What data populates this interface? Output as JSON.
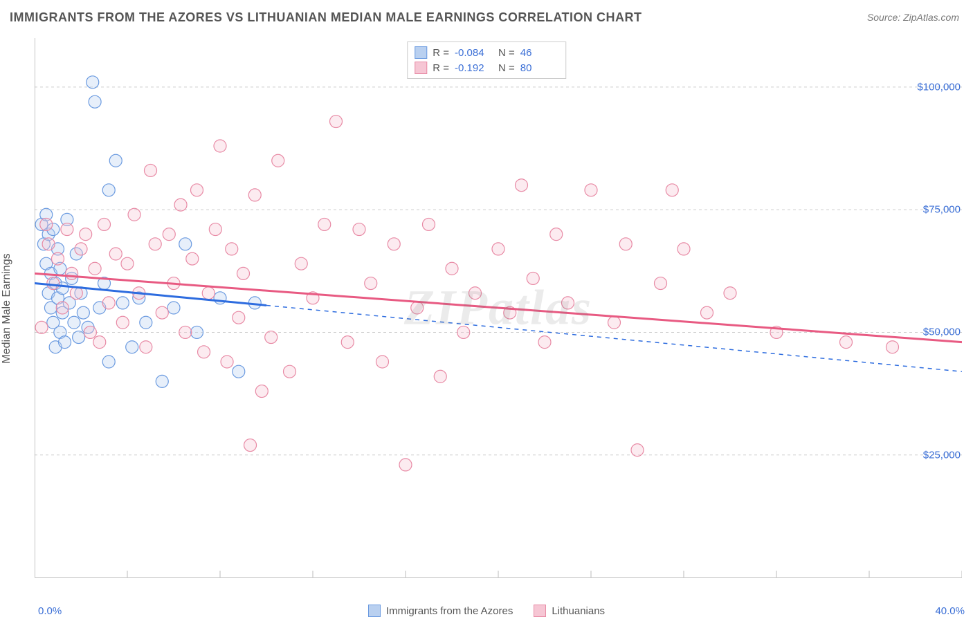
{
  "header": {
    "title": "IMMIGRANTS FROM THE AZORES VS LITHUANIAN MEDIAN MALE EARNINGS CORRELATION CHART",
    "source_prefix": "Source: ",
    "source": "ZipAtlas.com"
  },
  "watermark": "ZIPatlas",
  "y_axis_title": "Median Male Earnings",
  "chart": {
    "type": "scatter",
    "background_color": "#ffffff",
    "grid_color": "#cccccc",
    "axis_line_color": "#888888",
    "tick_color": "#bbbbbb",
    "xlim": [
      0,
      40
    ],
    "ylim": [
      0,
      110000
    ],
    "x_min_label": "0.0%",
    "x_max_label": "40.0%",
    "y_gridlines": [
      25000,
      50000,
      75000,
      100000
    ],
    "y_tick_labels": [
      "$25,000",
      "$50,000",
      "$75,000",
      "$100,000"
    ],
    "x_tick_positions": [
      0,
      4,
      8,
      12,
      16,
      20,
      24,
      28,
      32,
      36,
      40
    ],
    "marker_radius": 9,
    "marker_fill_opacity": 0.35,
    "marker_stroke_width": 1.2,
    "series": [
      {
        "name": "Immigrants from the Azores",
        "color_fill": "#b9d0f0",
        "color_stroke": "#6a9ae0",
        "trend_color": "#2d6cdf",
        "trend_width": 3,
        "trend_solid_xmax": 10,
        "trend_y_at_x0": 60000,
        "trend_y_at_xmax": 42000,
        "R": "-0.084",
        "N": "46",
        "points": [
          [
            0.3,
            72000
          ],
          [
            0.4,
            68000
          ],
          [
            0.5,
            74000
          ],
          [
            0.5,
            64000
          ],
          [
            0.6,
            70000
          ],
          [
            0.6,
            58000
          ],
          [
            0.7,
            62000
          ],
          [
            0.7,
            55000
          ],
          [
            0.8,
            71000
          ],
          [
            0.8,
            52000
          ],
          [
            0.9,
            60000
          ],
          [
            0.9,
            47000
          ],
          [
            1.0,
            67000
          ],
          [
            1.0,
            57000
          ],
          [
            1.1,
            50000
          ],
          [
            1.1,
            63000
          ],
          [
            1.2,
            54000
          ],
          [
            1.2,
            59000
          ],
          [
            1.3,
            48000
          ],
          [
            1.4,
            73000
          ],
          [
            1.5,
            56000
          ],
          [
            1.6,
            61000
          ],
          [
            1.7,
            52000
          ],
          [
            1.8,
            66000
          ],
          [
            1.9,
            49000
          ],
          [
            2.0,
            58000
          ],
          [
            2.1,
            54000
          ],
          [
            2.3,
            51000
          ],
          [
            2.5,
            101000
          ],
          [
            2.6,
            97000
          ],
          [
            2.8,
            55000
          ],
          [
            3.0,
            60000
          ],
          [
            3.2,
            44000
          ],
          [
            3.2,
            79000
          ],
          [
            3.5,
            85000
          ],
          [
            3.8,
            56000
          ],
          [
            4.2,
            47000
          ],
          [
            4.5,
            57000
          ],
          [
            4.8,
            52000
          ],
          [
            5.5,
            40000
          ],
          [
            6.0,
            55000
          ],
          [
            6.5,
            68000
          ],
          [
            7.0,
            50000
          ],
          [
            8.0,
            57000
          ],
          [
            8.8,
            42000
          ],
          [
            9.5,
            56000
          ]
        ]
      },
      {
        "name": "Lithuanians",
        "color_fill": "#f6c6d4",
        "color_stroke": "#e88aa5",
        "trend_color": "#e85a82",
        "trend_width": 3,
        "trend_solid_xmax": 40,
        "trend_y_at_x0": 62000,
        "trend_y_at_xmax": 48000,
        "R": "-0.192",
        "N": "80",
        "points": [
          [
            0.3,
            51000
          ],
          [
            0.5,
            72000
          ],
          [
            0.6,
            68000
          ],
          [
            0.8,
            60000
          ],
          [
            1.0,
            65000
          ],
          [
            1.2,
            55000
          ],
          [
            1.4,
            71000
          ],
          [
            1.6,
            62000
          ],
          [
            1.8,
            58000
          ],
          [
            2.0,
            67000
          ],
          [
            2.2,
            70000
          ],
          [
            2.4,
            50000
          ],
          [
            2.6,
            63000
          ],
          [
            2.8,
            48000
          ],
          [
            3.0,
            72000
          ],
          [
            3.2,
            56000
          ],
          [
            3.5,
            66000
          ],
          [
            3.8,
            52000
          ],
          [
            4.0,
            64000
          ],
          [
            4.3,
            74000
          ],
          [
            4.5,
            58000
          ],
          [
            4.8,
            47000
          ],
          [
            5.0,
            83000
          ],
          [
            5.2,
            68000
          ],
          [
            5.5,
            54000
          ],
          [
            5.8,
            70000
          ],
          [
            6.0,
            60000
          ],
          [
            6.3,
            76000
          ],
          [
            6.5,
            50000
          ],
          [
            6.8,
            65000
          ],
          [
            7.0,
            79000
          ],
          [
            7.3,
            46000
          ],
          [
            7.5,
            58000
          ],
          [
            7.8,
            71000
          ],
          [
            8.0,
            88000
          ],
          [
            8.3,
            44000
          ],
          [
            8.5,
            67000
          ],
          [
            8.8,
            53000
          ],
          [
            9.0,
            62000
          ],
          [
            9.3,
            27000
          ],
          [
            9.5,
            78000
          ],
          [
            9.8,
            38000
          ],
          [
            10.2,
            49000
          ],
          [
            10.5,
            85000
          ],
          [
            11.0,
            42000
          ],
          [
            11.5,
            64000
          ],
          [
            12.0,
            57000
          ],
          [
            12.5,
            72000
          ],
          [
            13.0,
            93000
          ],
          [
            13.5,
            48000
          ],
          [
            14.0,
            71000
          ],
          [
            14.5,
            60000
          ],
          [
            15.0,
            44000
          ],
          [
            15.5,
            68000
          ],
          [
            16.0,
            23000
          ],
          [
            16.5,
            55000
          ],
          [
            17.0,
            72000
          ],
          [
            17.5,
            41000
          ],
          [
            18.0,
            63000
          ],
          [
            18.5,
            50000
          ],
          [
            19.0,
            58000
          ],
          [
            20.0,
            67000
          ],
          [
            20.5,
            54000
          ],
          [
            21.0,
            80000
          ],
          [
            21.5,
            61000
          ],
          [
            22.0,
            48000
          ],
          [
            22.5,
            70000
          ],
          [
            23.0,
            56000
          ],
          [
            24.0,
            79000
          ],
          [
            25.0,
            52000
          ],
          [
            25.5,
            68000
          ],
          [
            26.0,
            26000
          ],
          [
            27.0,
            60000
          ],
          [
            27.5,
            79000
          ],
          [
            28.0,
            67000
          ],
          [
            29.0,
            54000
          ],
          [
            30.0,
            58000
          ],
          [
            32.0,
            50000
          ],
          [
            35.0,
            48000
          ],
          [
            37.0,
            47000
          ]
        ]
      }
    ]
  },
  "bottom_legend": {
    "items": [
      {
        "label": "Immigrants from the Azores",
        "fill": "#b9d0f0",
        "stroke": "#6a9ae0"
      },
      {
        "label": "Lithuanians",
        "fill": "#f6c6d4",
        "stroke": "#e88aa5"
      }
    ]
  }
}
